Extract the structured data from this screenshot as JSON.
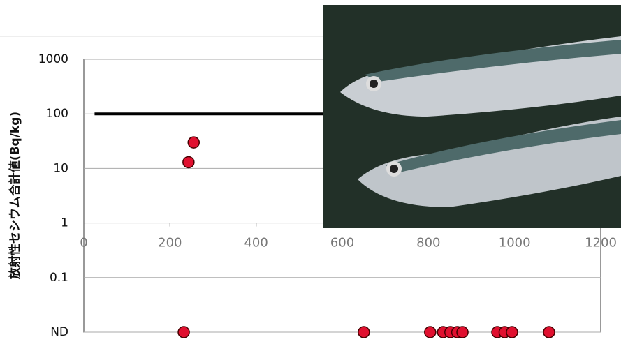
{
  "chart_data": {
    "type": "scatter",
    "y_label": "放射性セシウム合計値(Bq/kg)",
    "xlim": [
      0,
      1200
    ],
    "xticks": [
      0,
      200,
      400,
      600,
      800,
      1000,
      1200
    ],
    "ylim": [
      0.01,
      1000
    ],
    "log_y": true,
    "grid": true,
    "yticks": [
      {
        "value": 0.01,
        "label": "ND"
      },
      0.1,
      1,
      10,
      100,
      1000
    ],
    "series": [
      {
        "color": "#e0102f",
        "x": [
          243,
          255
        ],
        "values": [
          13,
          30
        ]
      },
      {
        "color": "#e0102f",
        "x": [
          232,
          650,
          804,
          834,
          851,
          867,
          879,
          960,
          977,
          994,
          1080
        ],
        "values": [
          0.01,
          0.01,
          0.01,
          0.01,
          0.01,
          0.01,
          0.01,
          0.01,
          0.01,
          0.01,
          0.01
        ]
      }
    ],
    "reference_line": {
      "color": "#000000",
      "x": [
        25,
        1200
      ],
      "values": [
        100,
        100
      ]
    }
  }
}
